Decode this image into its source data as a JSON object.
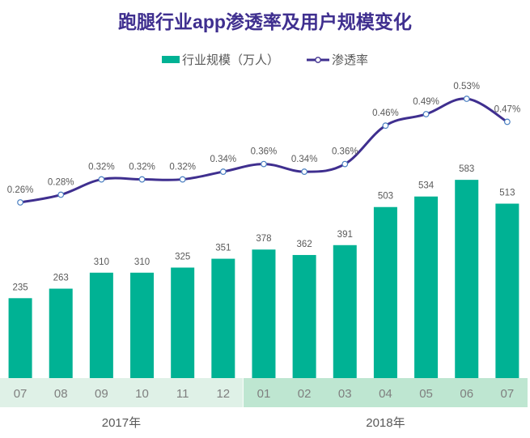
{
  "chart_data": {
    "type": "bar+line",
    "title": "跑腿行业app渗透率及用户规模变化",
    "categories": [
      "07",
      "08",
      "09",
      "10",
      "11",
      "12",
      "01",
      "02",
      "03",
      "04",
      "05",
      "06",
      "07"
    ],
    "groups": [
      {
        "label": "2017年",
        "count": 6,
        "color": "#dff1e7"
      },
      {
        "label": "2018年",
        "count": 7,
        "color": "#bee6d1"
      }
    ],
    "series": [
      {
        "name": "行业规模（万人）",
        "type": "bar",
        "color": "#00b294",
        "values": [
          235,
          263,
          310,
          310,
          325,
          351,
          378,
          362,
          391,
          503,
          534,
          583,
          513
        ]
      },
      {
        "name": "渗透率",
        "type": "line",
        "color": "#3f2f8f",
        "unit": "%",
        "values": [
          0.26,
          0.28,
          0.32,
          0.32,
          0.32,
          0.34,
          0.36,
          0.34,
          0.36,
          0.46,
          0.49,
          0.53,
          0.47
        ]
      }
    ],
    "legend": "top"
  }
}
